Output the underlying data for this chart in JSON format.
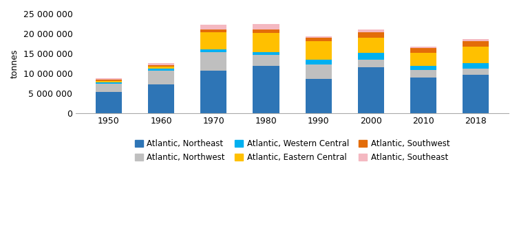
{
  "years": [
    "1950",
    "1960",
    "1970",
    "1980",
    "1990",
    "2000",
    "2010",
    "2018"
  ],
  "series": {
    "Atlantic, Northeast": [
      5300000,
      7200000,
      10700000,
      11900000,
      8700000,
      11500000,
      8900000,
      9600000
    ],
    "Atlantic, Northwest": [
      2100000,
      3500000,
      4700000,
      2700000,
      3500000,
      1900000,
      1900000,
      1600000
    ],
    "Atlantic, Western Central": [
      300000,
      600000,
      600000,
      700000,
      1300000,
      1700000,
      1100000,
      1400000
    ],
    "Atlantic, Eastern Central": [
      500000,
      500000,
      4300000,
      4900000,
      4600000,
      3900000,
      3200000,
      4100000
    ],
    "Atlantic, Southwest": [
      300000,
      300000,
      700000,
      900000,
      900000,
      1400000,
      1300000,
      1400000
    ],
    "Atlantic, Southeast": [
      300000,
      500000,
      1200000,
      1400000,
      300000,
      700000,
      400000,
      500000
    ]
  },
  "colors": {
    "Atlantic, Northeast": "#2E75B6",
    "Atlantic, Northwest": "#BFBFBF",
    "Atlantic, Western Central": "#00B0F0",
    "Atlantic, Eastern Central": "#FFC000",
    "Atlantic, Southwest": "#E36C09",
    "Atlantic, Southeast": "#F4B8C1"
  },
  "ylabel": "tonnes",
  "ylim": [
    0,
    25000000
  ],
  "yticks": [
    0,
    5000000,
    10000000,
    15000000,
    20000000,
    25000000
  ],
  "ytick_labels": [
    "0",
    "5 000 000",
    "10 000 000",
    "15 000 000",
    "20 000 000",
    "25 000 000"
  ],
  "background_color": "#FFFFFF",
  "stack_order": [
    "Atlantic, Northeast",
    "Atlantic, Northwest",
    "Atlantic, Western Central",
    "Atlantic, Eastern Central",
    "Atlantic, Southwest",
    "Atlantic, Southeast"
  ],
  "legend_order": [
    "Atlantic, Northeast",
    "Atlantic, Northwest",
    "Atlantic, Western Central",
    "Atlantic, Eastern Central",
    "Atlantic, Southwest",
    "Atlantic, Southeast"
  ]
}
